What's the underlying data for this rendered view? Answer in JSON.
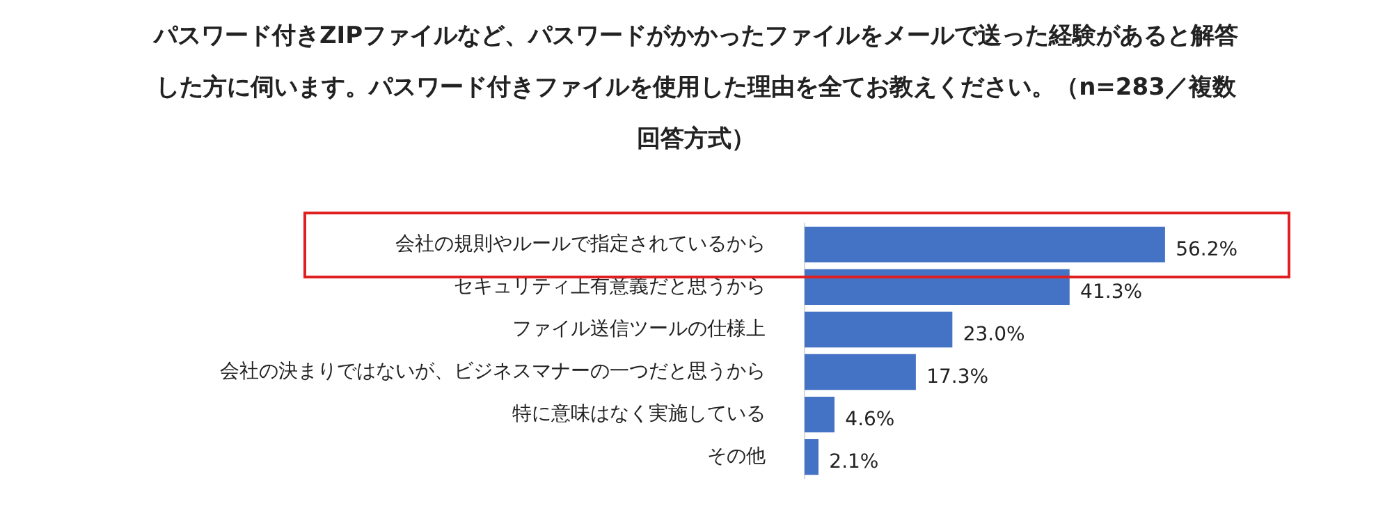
{
  "chart_data": {
    "type": "bar",
    "orientation": "horizontal",
    "title": "パスワード付きZIPファイルなど、パスワードがかかったファイルをメールで送った経験があると解答した方に伺います。パスワード付きファイルを使用した理由を全てお教えください。（n=283／複数回答方式）",
    "categories": [
      "会社の規則やルールで指定されているから",
      "セキュリティ上有意義だと思うから",
      "ファイル送信ツールの仕様上",
      "会社の決まりではないが、ビジネスマナーの一つだと思うから",
      "特に意味はなく実施している",
      "その他"
    ],
    "values": [
      56.2,
      41.3,
      23.0,
      17.3,
      4.6,
      2.1
    ],
    "value_labels": [
      "56.2%",
      "41.3%",
      "23.0%",
      "17.3%",
      "4.6%",
      "2.1%"
    ],
    "color": "#4472c4",
    "tick_labels": "y"
  }
}
